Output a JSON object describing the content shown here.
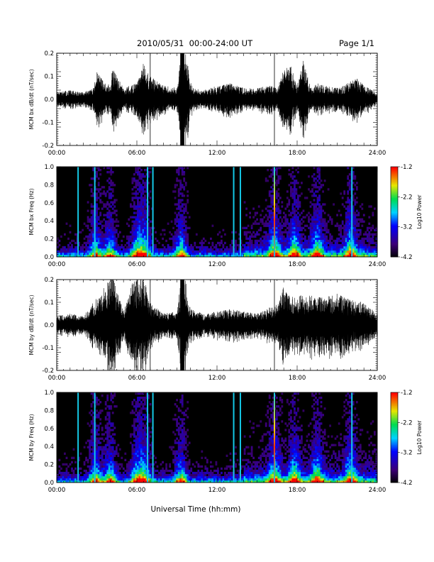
{
  "header": {
    "title": "2010/05/31  00:00-24:00 UT",
    "page": "Page 1/1"
  },
  "chart_data": [
    {
      "type": "line",
      "title": "",
      "ylabel": "MCM bx dB/dt (nT/sec)",
      "xlabel": "",
      "xlim": [
        "00:00",
        "24:00"
      ],
      "xticks": [
        "00:00",
        "06:00",
        "12:00",
        "18:00",
        "24:00"
      ],
      "ylim": [
        -0.2,
        0.2
      ],
      "yticks": [
        "-0.2",
        "-0.1",
        "0.0",
        "0.1",
        "0.2"
      ],
      "series": [
        {
          "x": [
            "00:00",
            "01:00",
            "02:00",
            "02:45",
            "03:00",
            "03:30",
            "04:00",
            "04:10",
            "05:00",
            "06:00",
            "06:30",
            "06:45",
            "07:00",
            "07:30",
            "08:00",
            "09:00",
            "09:20",
            "09:40",
            "10:00",
            "10:30",
            "11:00",
            "12:00",
            "13:00",
            "13:30",
            "14:00",
            "15:00",
            "16:00",
            "16:30",
            "17:00",
            "17:30",
            "18:00",
            "18:30",
            "19:00",
            "19:30",
            "20:00",
            "21:00",
            "21:30",
            "22:00",
            "22:30",
            "23:00",
            "24:00"
          ],
          "values": [
            0.03,
            0.04,
            0.03,
            0.05,
            -0.12,
            0.08,
            0.06,
            0.14,
            -0.05,
            0.07,
            0.16,
            -0.12,
            0.1,
            -0.08,
            0.06,
            0.05,
            0.21,
            -0.21,
            0.08,
            -0.05,
            0.04,
            0.06,
            0.07,
            -0.06,
            0.05,
            -0.05,
            0.06,
            0.05,
            0.13,
            -0.15,
            0.06,
            -0.18,
            0.05,
            0.07,
            0.06,
            0.05,
            0.06,
            0.08,
            0.09,
            -0.06,
            0.03
          ]
        }
      ]
    },
    {
      "type": "heatmap",
      "title": "",
      "ylabel": "MCM bx Freq (Hz)",
      "xlabel": "",
      "xlim": [
        "00:00",
        "24:00"
      ],
      "xticks": [
        "00:00",
        "06:00",
        "12:00",
        "18:00",
        "24:00"
      ],
      "ylim": [
        0.0,
        1.0
      ],
      "yticks": [
        "0.0",
        "0.2",
        "0.4",
        "0.6",
        "0.8",
        "1.0"
      ],
      "colorbar": {
        "label": "Log10 Power",
        "min": -4.2,
        "max": -1.2,
        "ticks": [
          "-1.2",
          "-2.2",
          "-3.2",
          "-4.2"
        ]
      },
      "vertical_lines_hours": [
        1.6,
        2.85,
        6.8,
        7.2,
        13.25,
        13.75,
        16.3,
        22.1
      ],
      "bursts_hours": [
        2.9,
        4.0,
        6.0,
        6.6,
        9.3,
        16.3,
        17.8,
        19.5,
        22.0
      ]
    },
    {
      "type": "line",
      "title": "",
      "ylabel": "MCM by dB/dt (nT/sec)",
      "xlabel": "",
      "xlim": [
        "00:00",
        "24:00"
      ],
      "xticks": [
        "00:00",
        "06:00",
        "12:00",
        "18:00",
        "24:00"
      ],
      "ylim": [
        -0.2,
        0.2
      ],
      "yticks": [
        "-0.2",
        "-0.1",
        "0.0",
        "0.1",
        "0.2"
      ],
      "series": [
        {
          "x": [
            "00:00",
            "01:00",
            "02:00",
            "03:00",
            "04:00",
            "04:15",
            "05:00",
            "05:45",
            "06:00",
            "06:30",
            "07:00",
            "08:00",
            "09:00",
            "09:20",
            "09:40",
            "10:00",
            "11:00",
            "12:00",
            "13:00",
            "14:00",
            "15:00",
            "16:00",
            "16:30",
            "17:00",
            "17:30",
            "18:00",
            "18:30",
            "19:00",
            "20:00",
            "21:00",
            "22:00",
            "23:00",
            "24:00"
          ],
          "values": [
            0.04,
            0.05,
            0.04,
            -0.12,
            -0.21,
            0.21,
            0.06,
            -0.2,
            0.21,
            -0.21,
            0.1,
            0.05,
            0.06,
            0.21,
            -0.21,
            0.07,
            0.05,
            0.06,
            0.07,
            0.06,
            0.05,
            0.08,
            0.1,
            0.17,
            -0.12,
            0.14,
            -0.13,
            0.13,
            0.12,
            0.14,
            0.11,
            0.1,
            0.05
          ]
        }
      ]
    },
    {
      "type": "heatmap",
      "title": "",
      "ylabel": "MCM by Freq (Hz)",
      "xlabel": "Universal Time (hh:mm)",
      "xlim": [
        "00:00",
        "24:00"
      ],
      "xticks": [
        "00:00",
        "06:00",
        "12:00",
        "18:00",
        "24:00"
      ],
      "ylim": [
        0.0,
        1.0
      ],
      "yticks": [
        "0.0",
        "0.2",
        "0.4",
        "0.6",
        "0.8",
        "1.0"
      ],
      "colorbar": {
        "label": "Log10 Power",
        "min": -4.2,
        "max": -1.2,
        "ticks": [
          "-1.2",
          "-2.2",
          "-3.2",
          "-4.2"
        ]
      },
      "vertical_lines_hours": [
        1.6,
        2.85,
        6.8,
        7.2,
        13.25,
        13.75,
        16.3,
        22.1
      ],
      "bursts_hours": [
        2.9,
        4.0,
        6.0,
        6.6,
        9.3,
        16.3,
        17.8,
        19.5,
        22.0
      ]
    }
  ]
}
